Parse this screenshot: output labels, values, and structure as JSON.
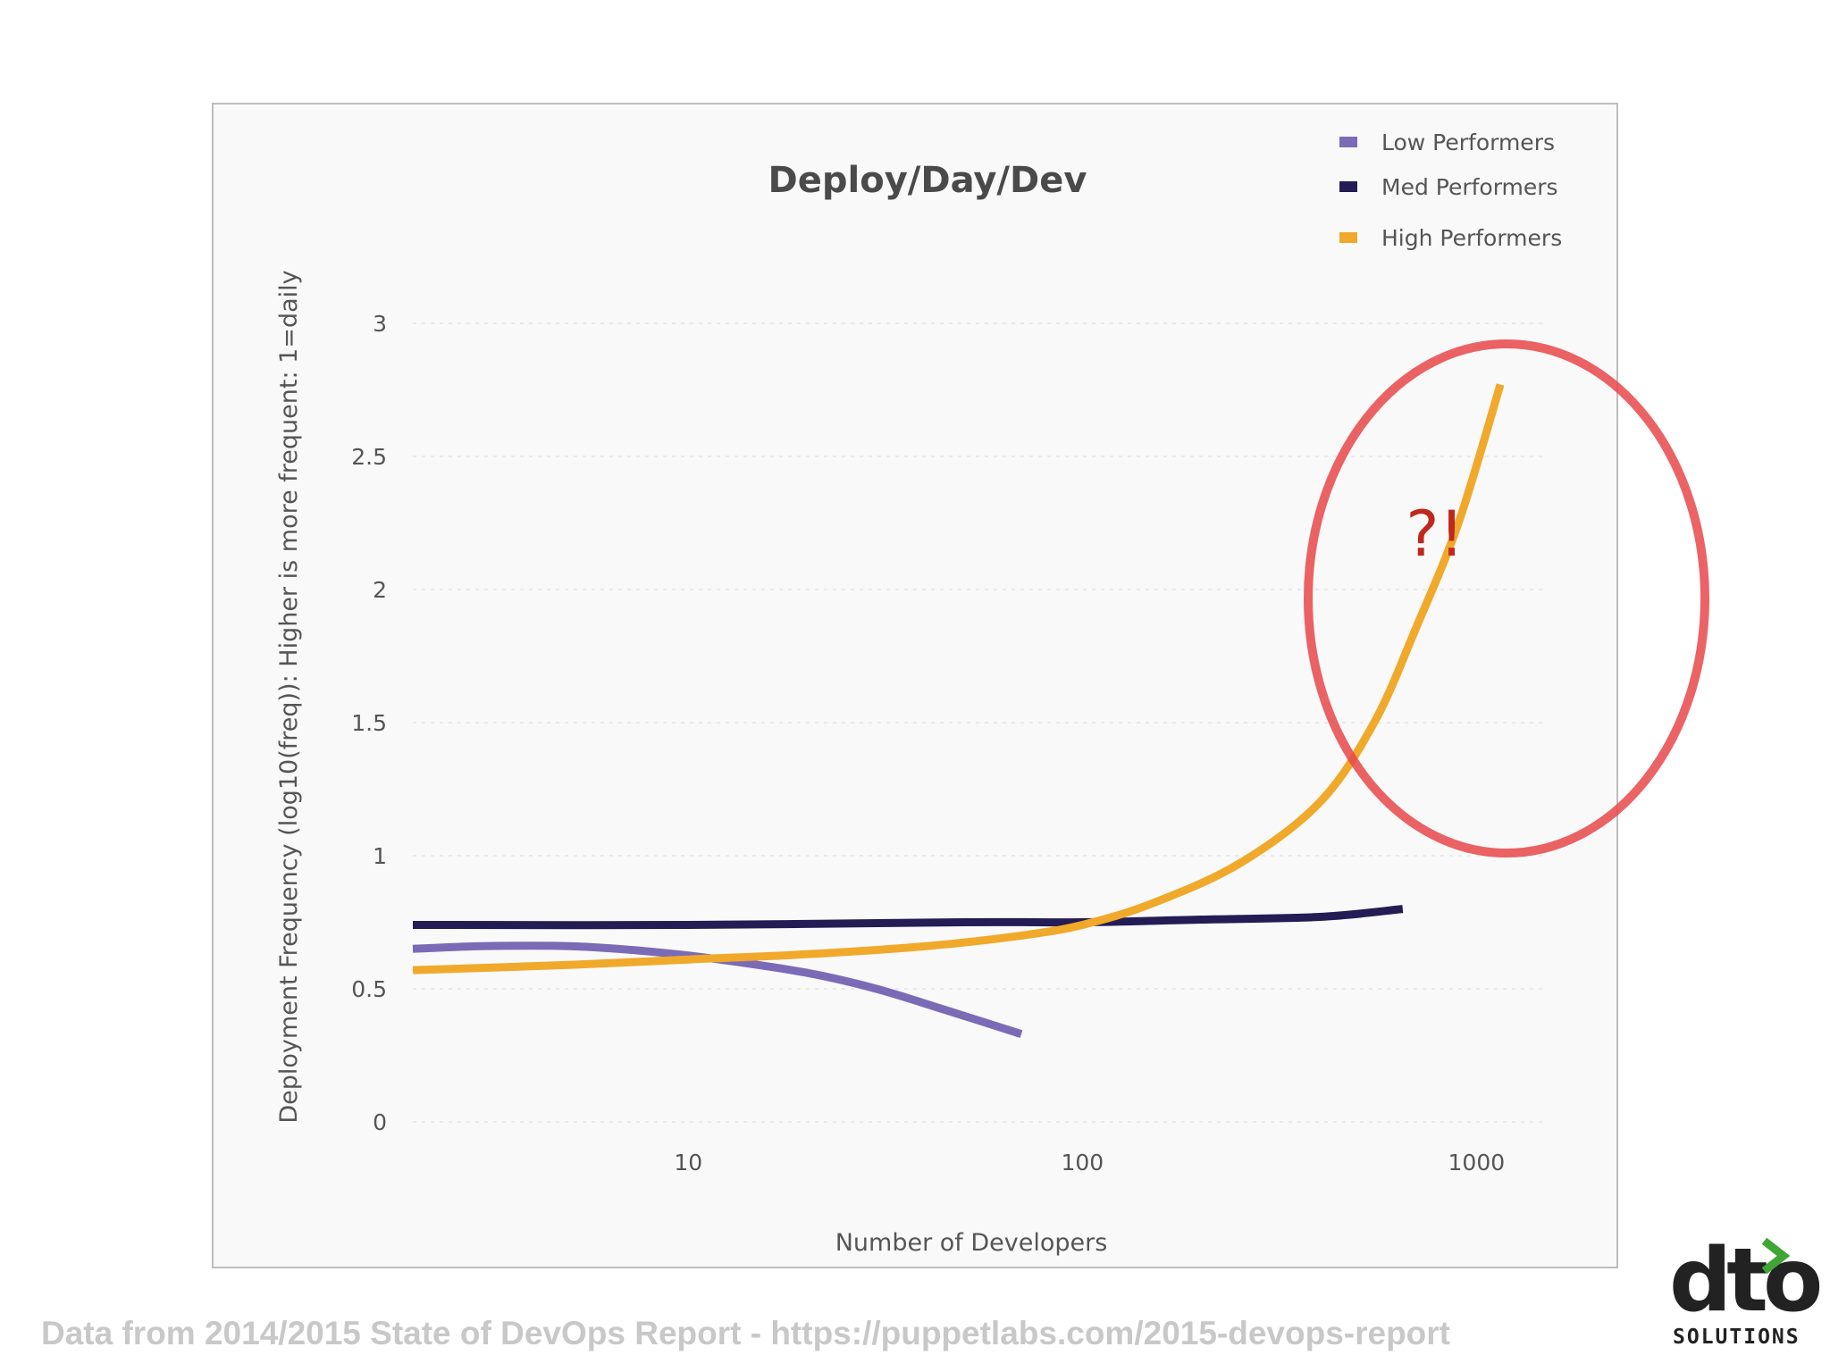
{
  "chart_data": {
    "type": "line",
    "title": "Deploy/Day/Dev",
    "xlabel": "Number of Developers",
    "ylabel": "Deployment Frequency  (log10(freq)): Higher is more frequent: 1=daily",
    "x_scale": "log",
    "xlim": [
      2,
      1500
    ],
    "ylim": [
      0,
      3
    ],
    "x_ticks": [
      {
        "value": 10,
        "label": "10"
      },
      {
        "value": 100,
        "label": "100"
      },
      {
        "value": 1000,
        "label": "1000"
      }
    ],
    "y_ticks": [
      {
        "value": 0,
        "label": "0"
      },
      {
        "value": 0.5,
        "label": "0.5"
      },
      {
        "value": 1,
        "label": "1"
      },
      {
        "value": 1.5,
        "label": "1.5"
      },
      {
        "value": 2,
        "label": "2"
      },
      {
        "value": 2.5,
        "label": "2.5"
      },
      {
        "value": 3,
        "label": "3"
      }
    ],
    "grid": {
      "horizontal": true,
      "vertical": false
    },
    "legend_position": "top-right",
    "series": [
      {
        "name": "Low Performers",
        "color": "#7b6bb6",
        "points": [
          [
            2,
            0.65
          ],
          [
            3,
            0.66
          ],
          [
            5,
            0.66
          ],
          [
            8,
            0.64
          ],
          [
            12,
            0.61
          ],
          [
            20,
            0.56
          ],
          [
            30,
            0.5
          ],
          [
            45,
            0.42
          ],
          [
            70,
            0.33
          ]
        ]
      },
      {
        "name": "Med Performers",
        "color": "#231c55",
        "points": [
          [
            2,
            0.74
          ],
          [
            10,
            0.74
          ],
          [
            50,
            0.75
          ],
          [
            100,
            0.75
          ],
          [
            200,
            0.76
          ],
          [
            400,
            0.77
          ],
          [
            650,
            0.8
          ]
        ]
      },
      {
        "name": "High Performers",
        "color": "#f0a92a",
        "points": [
          [
            2,
            0.57
          ],
          [
            5,
            0.59
          ],
          [
            10,
            0.61
          ],
          [
            20,
            0.63
          ],
          [
            40,
            0.66
          ],
          [
            70,
            0.7
          ],
          [
            100,
            0.74
          ],
          [
            150,
            0.82
          ],
          [
            250,
            0.97
          ],
          [
            400,
            1.2
          ],
          [
            550,
            1.5
          ],
          [
            700,
            1.85
          ],
          [
            900,
            2.25
          ],
          [
            1150,
            2.77
          ]
        ]
      }
    ],
    "annotation": {
      "text": "?!",
      "color": "#e8484a"
    }
  },
  "footer": "Data from 2014/2015 State of DevOps Report  - https://puppetlabs.com/2015-devops-report",
  "logo": {
    "mark": "dto",
    "subtitle": "SOLUTIONS",
    "accent_color": "#3fa535"
  }
}
